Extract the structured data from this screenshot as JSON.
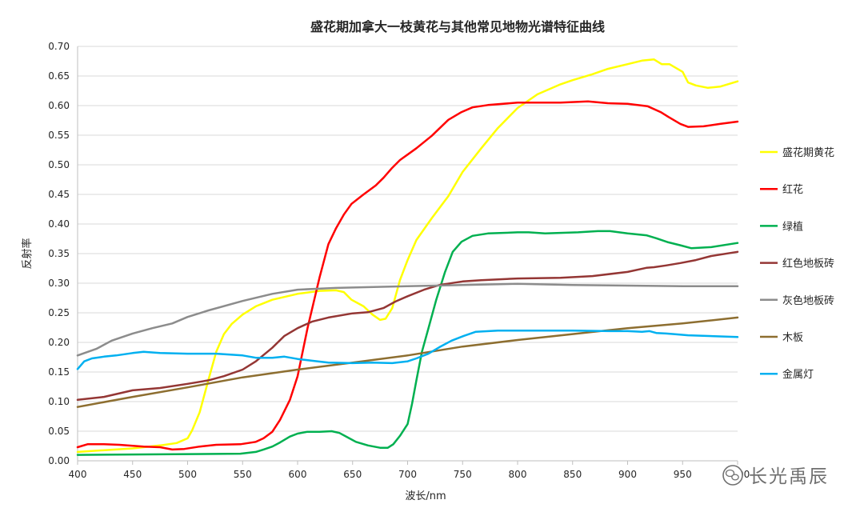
{
  "chart_data": {
    "type": "line",
    "title": "盛花期加拿大一枝黄花与其他常见地物光谱特征曲线",
    "xlabel": "波长/nm",
    "ylabel": "反射率",
    "xlim": [
      400,
      1000
    ],
    "ylim": [
      0,
      0.7
    ],
    "xticks": [
      "400",
      "450",
      "500",
      "550",
      "600",
      "650",
      "700",
      "750",
      "800",
      "850",
      "900",
      "950",
      "1000"
    ],
    "yticks": [
      "0.00",
      "0.05",
      "0.10",
      "0.15",
      "0.20",
      "0.25",
      "0.30",
      "0.35",
      "0.40",
      "0.45",
      "0.50",
      "0.55",
      "0.60",
      "0.65",
      "0.70"
    ],
    "grid_y": true,
    "grid_x": false,
    "legend_position": "right",
    "series": [
      {
        "name": "盛花期黄花",
        "color": "#FFFF00",
        "x": [
          400,
          450,
          475,
          490,
          500,
          504,
          511,
          519,
          526,
          533,
          540,
          550,
          562,
          577,
          600,
          620,
          635,
          642,
          649,
          660,
          668,
          675,
          680,
          686,
          693,
          700,
          708,
          722,
          737,
          750,
          767,
          782,
          800,
          818,
          839,
          850,
          868,
          882,
          900,
          913,
          924,
          931,
          938,
          950,
          955,
          962,
          973,
          984,
          1000
        ],
        "y": [
          0.015,
          0.021,
          0.026,
          0.03,
          0.038,
          0.051,
          0.082,
          0.137,
          0.184,
          0.214,
          0.231,
          0.247,
          0.261,
          0.272,
          0.282,
          0.287,
          0.288,
          0.285,
          0.272,
          0.261,
          0.247,
          0.238,
          0.24,
          0.258,
          0.305,
          0.339,
          0.373,
          0.41,
          0.447,
          0.488,
          0.528,
          0.562,
          0.596,
          0.619,
          0.636,
          0.643,
          0.653,
          0.662,
          0.67,
          0.676,
          0.678,
          0.67,
          0.67,
          0.657,
          0.639,
          0.634,
          0.63,
          0.632,
          0.641
        ]
      },
      {
        "name": "红花",
        "color": "#FF0000",
        "x": [
          400,
          409,
          424,
          438,
          460,
          475,
          486,
          497,
          511,
          526,
          548,
          562,
          569,
          577,
          584,
          593,
          600,
          609,
          620,
          628,
          635,
          642,
          649,
          660,
          671,
          678,
          686,
          693,
          708,
          722,
          737,
          749,
          759,
          773,
          800,
          839,
          864,
          882,
          900,
          918,
          930,
          937,
          948,
          955,
          969,
          984,
          1000
        ],
        "y": [
          0.023,
          0.028,
          0.028,
          0.027,
          0.024,
          0.023,
          0.019,
          0.02,
          0.024,
          0.027,
          0.028,
          0.032,
          0.038,
          0.049,
          0.069,
          0.103,
          0.143,
          0.224,
          0.31,
          0.366,
          0.393,
          0.416,
          0.434,
          0.45,
          0.465,
          0.478,
          0.495,
          0.508,
          0.528,
          0.549,
          0.576,
          0.589,
          0.597,
          0.601,
          0.605,
          0.605,
          0.607,
          0.604,
          0.603,
          0.599,
          0.589,
          0.581,
          0.569,
          0.564,
          0.565,
          0.569,
          0.573
        ]
      },
      {
        "name": "绿植",
        "color": "#00B050",
        "x": [
          400,
          475,
          548,
          562,
          569,
          577,
          584,
          593,
          600,
          609,
          620,
          631,
          638,
          646,
          653,
          664,
          675,
          682,
          687,
          693,
          700,
          704,
          708,
          713,
          719,
          726,
          734,
          741,
          749,
          759,
          773,
          800,
          810,
          825,
          855,
          873,
          884,
          900,
          917,
          926,
          937,
          948,
          958,
          976,
          1000
        ],
        "y": [
          0.01,
          0.011,
          0.012,
          0.015,
          0.019,
          0.024,
          0.031,
          0.041,
          0.046,
          0.049,
          0.049,
          0.05,
          0.047,
          0.039,
          0.032,
          0.026,
          0.022,
          0.022,
          0.028,
          0.042,
          0.062,
          0.096,
          0.136,
          0.184,
          0.224,
          0.272,
          0.319,
          0.353,
          0.37,
          0.38,
          0.384,
          0.386,
          0.386,
          0.384,
          0.386,
          0.388,
          0.388,
          0.384,
          0.381,
          0.376,
          0.369,
          0.364,
          0.359,
          0.361,
          0.368
        ]
      },
      {
        "name": "红色地板砖",
        "color": "#943634",
        "x": [
          400,
          424,
          450,
          475,
          500,
          519,
          533,
          550,
          562,
          577,
          588,
          600,
          613,
          628,
          650,
          664,
          678,
          689,
          700,
          715,
          729,
          750,
          767,
          800,
          839,
          868,
          900,
          917,
          924,
          935,
          948,
          962,
          976,
          1000
        ],
        "y": [
          0.103,
          0.108,
          0.119,
          0.123,
          0.13,
          0.136,
          0.143,
          0.154,
          0.168,
          0.191,
          0.211,
          0.224,
          0.235,
          0.242,
          0.249,
          0.251,
          0.258,
          0.269,
          0.278,
          0.289,
          0.297,
          0.303,
          0.305,
          0.308,
          0.309,
          0.312,
          0.319,
          0.326,
          0.327,
          0.33,
          0.334,
          0.339,
          0.346,
          0.353
        ]
      },
      {
        "name": "灰色地板砖",
        "color": "#8C8C8C",
        "x": [
          400,
          417,
          431,
          450,
          468,
          486,
          500,
          519,
          550,
          577,
          600,
          635,
          700,
          750,
          800,
          850,
          900,
          950,
          1000
        ],
        "y": [
          0.178,
          0.189,
          0.203,
          0.215,
          0.224,
          0.232,
          0.243,
          0.254,
          0.27,
          0.282,
          0.289,
          0.292,
          0.295,
          0.297,
          0.299,
          0.297,
          0.296,
          0.295,
          0.295
        ]
      },
      {
        "name": "木板",
        "color": "#8D6E30",
        "x": [
          400,
          450,
          500,
          550,
          600,
          650,
          700,
          750,
          800,
          850,
          900,
          950,
          1000
        ],
        "y": [
          0.091,
          0.108,
          0.124,
          0.141,
          0.154,
          0.166,
          0.178,
          0.193,
          0.204,
          0.214,
          0.224,
          0.232,
          0.242
        ]
      },
      {
        "name": "金属灯",
        "color": "#00B0F0",
        "x": [
          400,
          406,
          413,
          424,
          435,
          450,
          460,
          475,
          500,
          526,
          550,
          562,
          577,
          588,
          600,
          613,
          628,
          650,
          668,
          686,
          700,
          708,
          719,
          729,
          740,
          751,
          762,
          782,
          800,
          850,
          884,
          900,
          913,
          920,
          926,
          935,
          942,
          955,
          1000
        ],
        "y": [
          0.155,
          0.168,
          0.173,
          0.176,
          0.178,
          0.182,
          0.184,
          0.182,
          0.181,
          0.181,
          0.178,
          0.174,
          0.174,
          0.176,
          0.172,
          0.169,
          0.166,
          0.165,
          0.166,
          0.165,
          0.168,
          0.173,
          0.181,
          0.192,
          0.203,
          0.211,
          0.218,
          0.22,
          0.22,
          0.22,
          0.219,
          0.219,
          0.218,
          0.219,
          0.216,
          0.215,
          0.214,
          0.212,
          0.209
        ]
      }
    ]
  },
  "watermark": {
    "text": "长光禹辰",
    "icon": "wechat-icon"
  }
}
